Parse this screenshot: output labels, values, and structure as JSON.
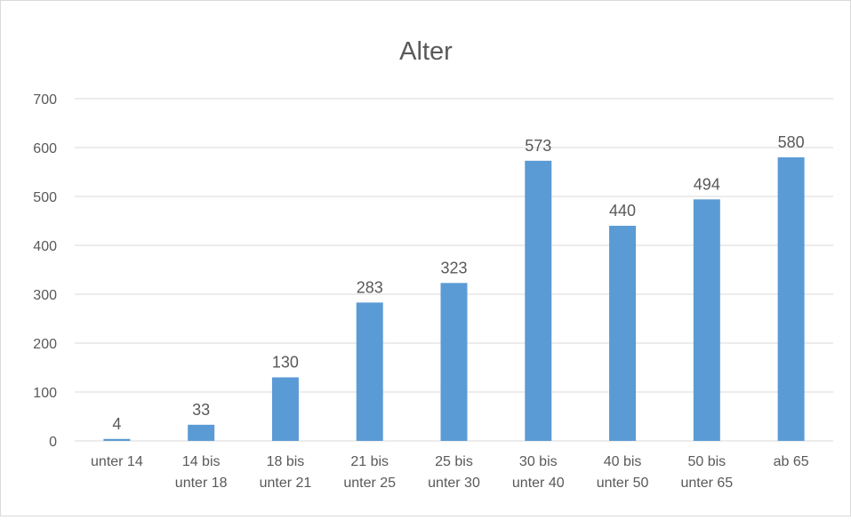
{
  "chart_data": {
    "type": "bar",
    "title": "Alter",
    "xlabel": "",
    "ylabel": "",
    "categories": [
      [
        "unter 14"
      ],
      [
        "14 bis",
        "unter 18"
      ],
      [
        "18 bis",
        "unter 21"
      ],
      [
        "21 bis",
        "unter 25"
      ],
      [
        "25 bis",
        "unter 30"
      ],
      [
        "30 bis",
        "unter 40"
      ],
      [
        "40 bis",
        "unter 50"
      ],
      [
        "50 bis",
        "unter 65"
      ],
      [
        "ab 65"
      ]
    ],
    "values": [
      4,
      33,
      130,
      283,
      323,
      573,
      440,
      494,
      580
    ],
    "ylim": [
      0,
      700
    ],
    "yticks": [
      0,
      100,
      200,
      300,
      400,
      500,
      600,
      700
    ],
    "grid": true,
    "legend": "none",
    "colors": {
      "bar": "#5b9bd5",
      "grid": "#d9d9d9",
      "text": "#595959"
    }
  }
}
